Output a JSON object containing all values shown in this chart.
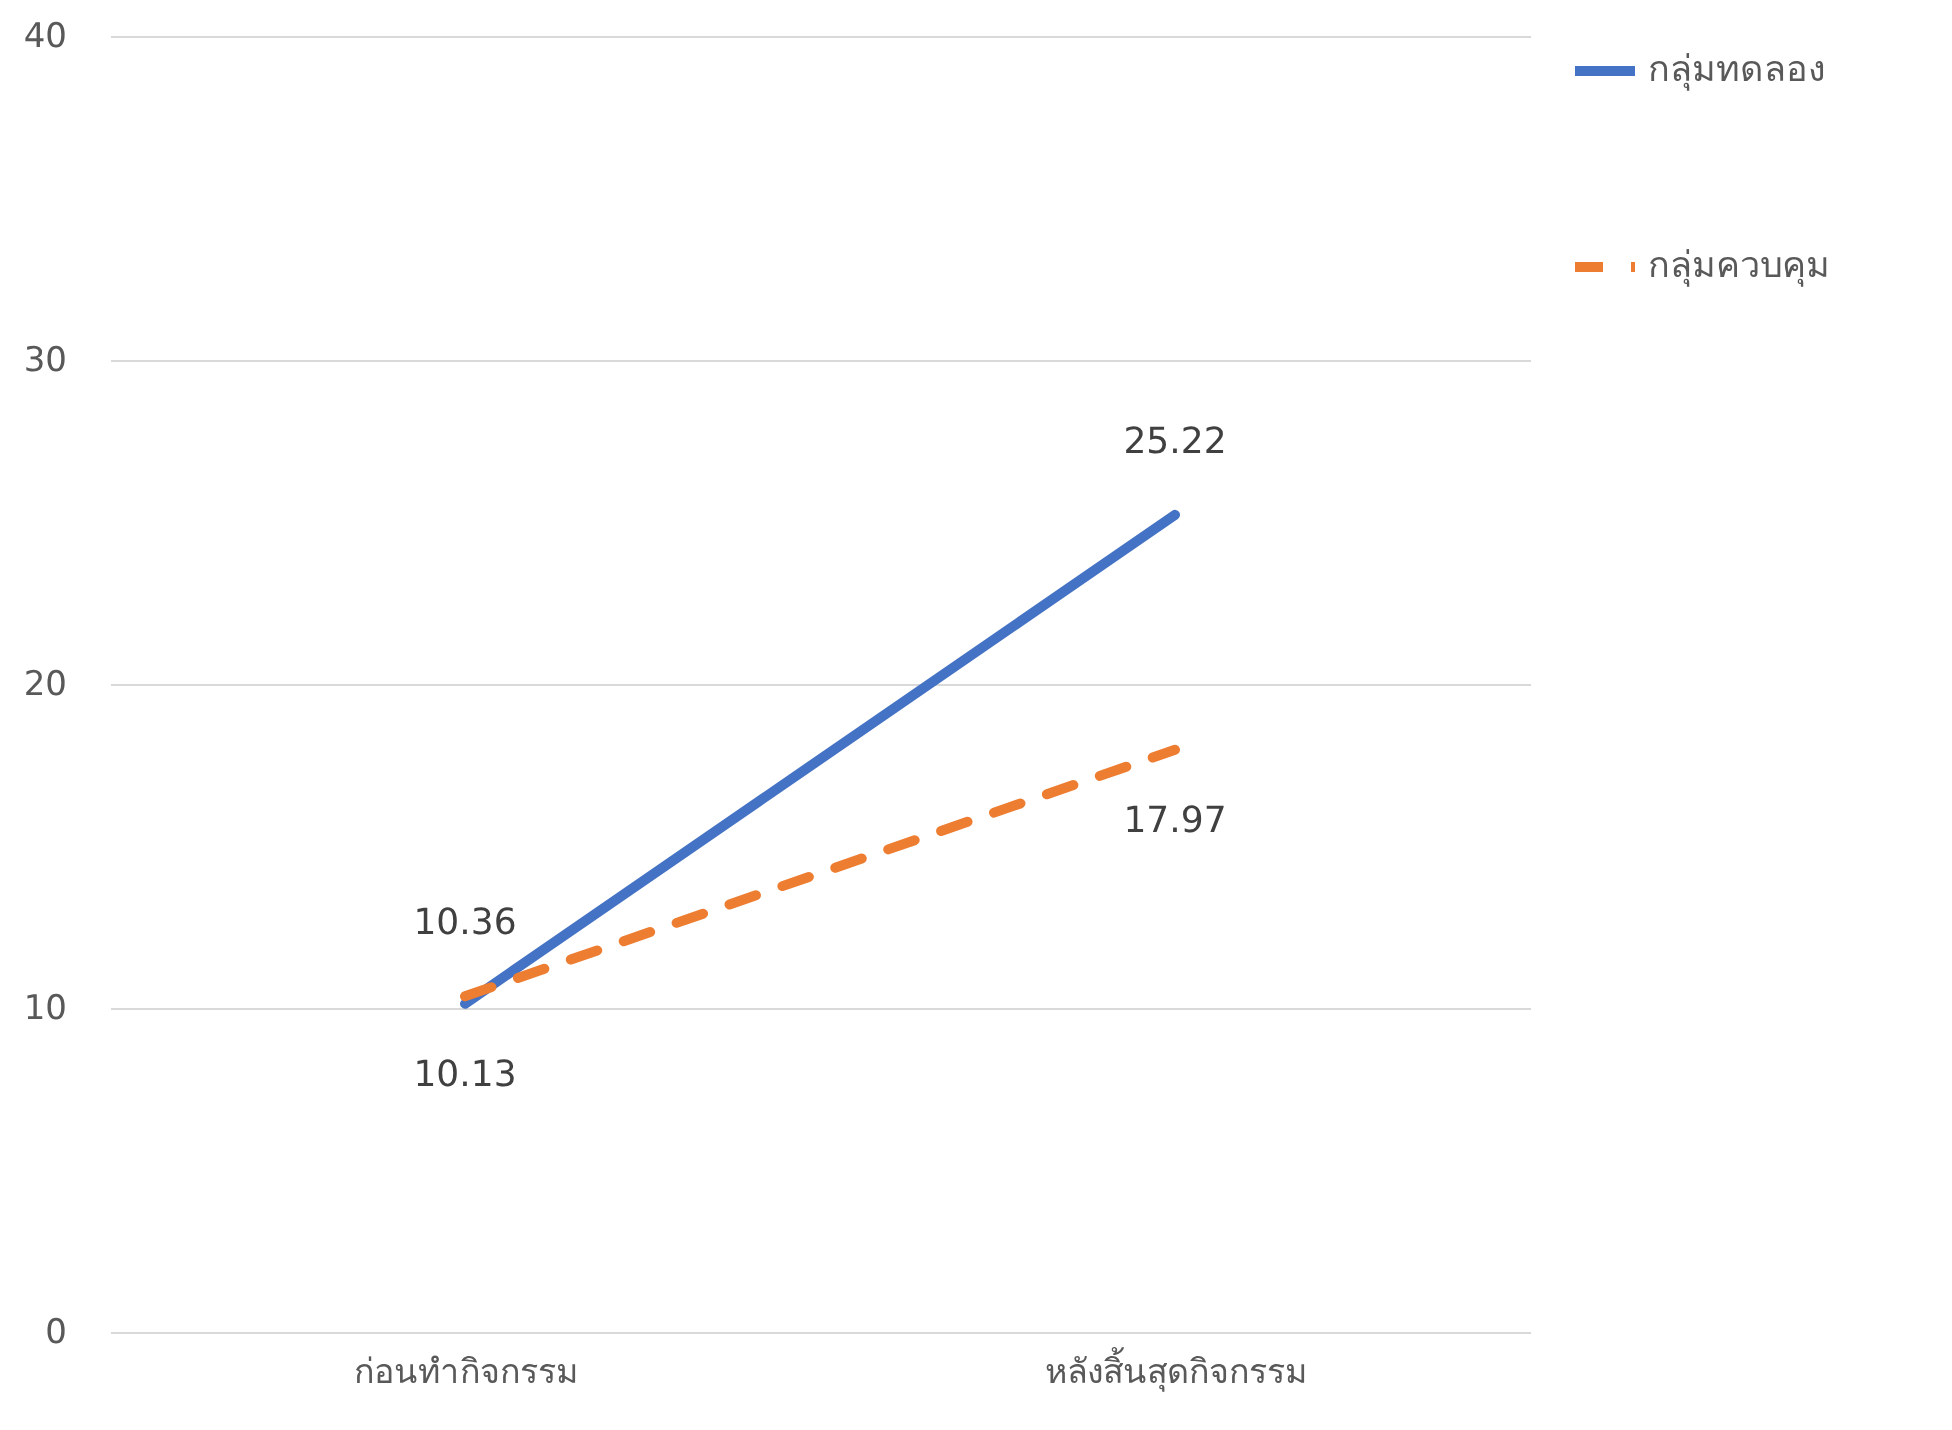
{
  "chart_data": {
    "type": "line",
    "categories": [
      "ก่อนทำกิจกรรม",
      "หลังสิ้นสุดกิจกรรม"
    ],
    "series": [
      {
        "name": "กลุ่มทดลอง",
        "color": "#4472c4",
        "line_style": "solid",
        "values": [
          10.13,
          25.22
        ]
      },
      {
        "name": "กลุ่มควบคุม",
        "color": "#ed7d31",
        "line_style": "dashed",
        "values": [
          10.36,
          17.97
        ]
      }
    ],
    "ylim": [
      0,
      40
    ],
    "yticks": [
      0,
      10,
      20,
      30,
      40
    ],
    "grid": "y",
    "legend": "right",
    "data_labels": true,
    "marker": "none"
  }
}
